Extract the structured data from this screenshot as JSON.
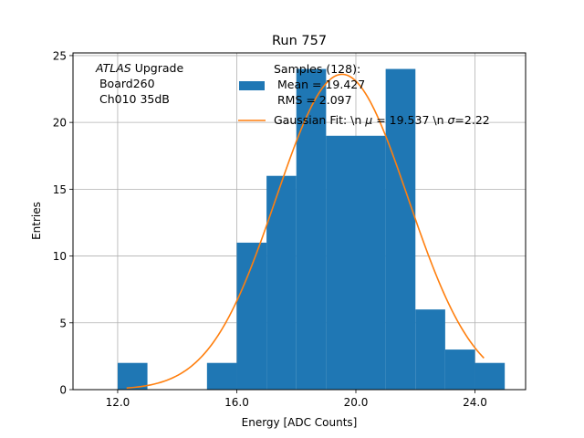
{
  "chart_data": {
    "type": "bar",
    "title": "Run 757",
    "xlabel": "Energy [ADC Counts]",
    "ylabel": "Entries",
    "xlim": [
      10.5,
      25.7
    ],
    "ylim": [
      0,
      25.2
    ],
    "xticks": [
      12.0,
      16.0,
      20.0,
      24.0
    ],
    "xtick_labels": [
      "12.0",
      "16.0",
      "20.0",
      "24.0"
    ],
    "yticks": [
      0,
      5,
      10,
      15,
      20,
      25
    ],
    "ytick_labels": [
      "0",
      "5",
      "10",
      "15",
      "20",
      "25"
    ],
    "grid": true,
    "histogram": {
      "bin_width": 1,
      "bin_starts": [
        12,
        15,
        16,
        17,
        18,
        19,
        20,
        21,
        22,
        23,
        24
      ],
      "counts": [
        2,
        2,
        11,
        16,
        24,
        19,
        19,
        24,
        6,
        3,
        2
      ],
      "color": "#1f77b4"
    },
    "fit": {
      "mean": 19.537,
      "sigma": 2.22,
      "amplitude": 23.6,
      "x_range": [
        12.3,
        24.3
      ],
      "color": "#ff7f0e"
    },
    "annotation_lines": [
      {
        "italic": "ATLAS",
        "rest": " Upgrade"
      },
      {
        "italic": "",
        "rest": " Board260"
      },
      {
        "italic": "",
        "rest": " Ch010 35dB"
      }
    ],
    "legend": {
      "placement": "top-right",
      "hist_lines": [
        "Samples (128):",
        " Mean = 19.427",
        " RMS = 2.097"
      ],
      "fit_label_parts": [
        "Gaussian Fit: \\n ",
        "μ",
        " = 19.537 \\n ",
        "σ",
        "=2.22"
      ]
    }
  }
}
